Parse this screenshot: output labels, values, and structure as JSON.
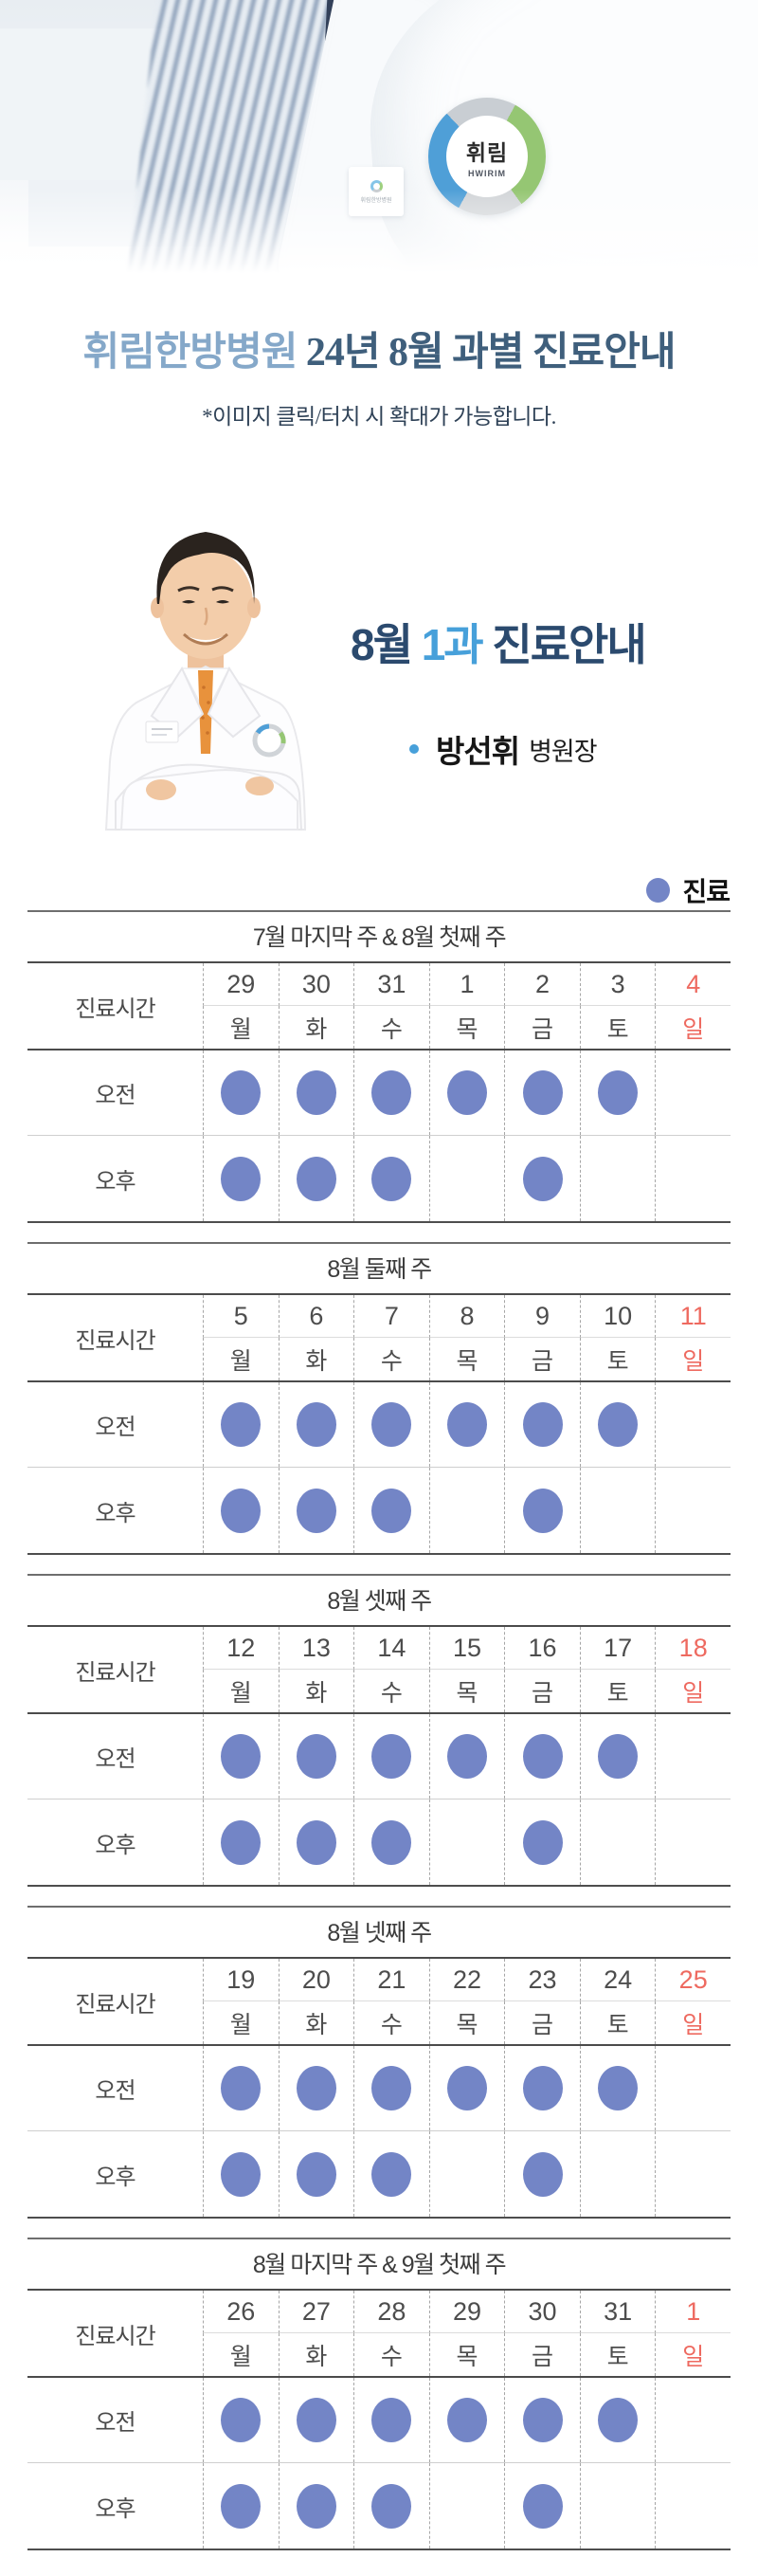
{
  "hero": {
    "badge_kr": "휘림",
    "badge_en": "HWIRIM",
    "tag_text": "휘림한방병원"
  },
  "title": {
    "highlight": "휘림한방병원",
    "rest": " 24년 8월 과별 진료안내",
    "subtitle": "*이미지 클릭/터치 시 확대가 가능합니다."
  },
  "department": {
    "heading_prefix": "8월 ",
    "heading_highlight": "1과",
    "heading_suffix": " 진료안내",
    "doctor_name": "방선휘",
    "doctor_title": "병원장"
  },
  "legend": {
    "label": "진료"
  },
  "table_labels": {
    "time_column": "진료시간",
    "am": "오전",
    "pm": "오후"
  },
  "colors": {
    "dot": "#7385c6",
    "sunday": "#ee6a60",
    "accent_blue": "#47a0da",
    "navy": "#2b4a6e",
    "title_highlight": "#85a8c9",
    "title_main": "#3f5f7c"
  },
  "schedule": {
    "weeks": [
      {
        "title": "7월 마지막 주 & 8월 첫째 주",
        "dates": [
          "29",
          "30",
          "31",
          "1",
          "2",
          "3",
          "4"
        ],
        "days": [
          "월",
          "화",
          "수",
          "목",
          "금",
          "토",
          "일"
        ],
        "am": [
          1,
          1,
          1,
          1,
          1,
          1,
          0
        ],
        "pm": [
          1,
          1,
          1,
          0,
          1,
          0,
          0
        ]
      },
      {
        "title": "8월 둘째 주",
        "dates": [
          "5",
          "6",
          "7",
          "8",
          "9",
          "10",
          "11"
        ],
        "days": [
          "월",
          "화",
          "수",
          "목",
          "금",
          "토",
          "일"
        ],
        "am": [
          1,
          1,
          1,
          1,
          1,
          1,
          0
        ],
        "pm": [
          1,
          1,
          1,
          0,
          1,
          0,
          0
        ]
      },
      {
        "title": "8월 셋째 주",
        "dates": [
          "12",
          "13",
          "14",
          "15",
          "16",
          "17",
          "18"
        ],
        "days": [
          "월",
          "화",
          "수",
          "목",
          "금",
          "토",
          "일"
        ],
        "am": [
          1,
          1,
          1,
          1,
          1,
          1,
          0
        ],
        "pm": [
          1,
          1,
          1,
          0,
          1,
          0,
          0
        ]
      },
      {
        "title": "8월 넷째 주",
        "dates": [
          "19",
          "20",
          "21",
          "22",
          "23",
          "24",
          "25"
        ],
        "days": [
          "월",
          "화",
          "수",
          "목",
          "금",
          "토",
          "일"
        ],
        "am": [
          1,
          1,
          1,
          1,
          1,
          1,
          0
        ],
        "pm": [
          1,
          1,
          1,
          0,
          1,
          0,
          0
        ]
      },
      {
        "title": "8월 마지막 주 & 9월 첫째 주",
        "dates": [
          "26",
          "27",
          "28",
          "29",
          "30",
          "31",
          "1"
        ],
        "days": [
          "월",
          "화",
          "수",
          "목",
          "금",
          "토",
          "일"
        ],
        "am": [
          1,
          1,
          1,
          1,
          1,
          1,
          0
        ],
        "pm": [
          1,
          1,
          1,
          0,
          1,
          0,
          0
        ]
      }
    ]
  }
}
